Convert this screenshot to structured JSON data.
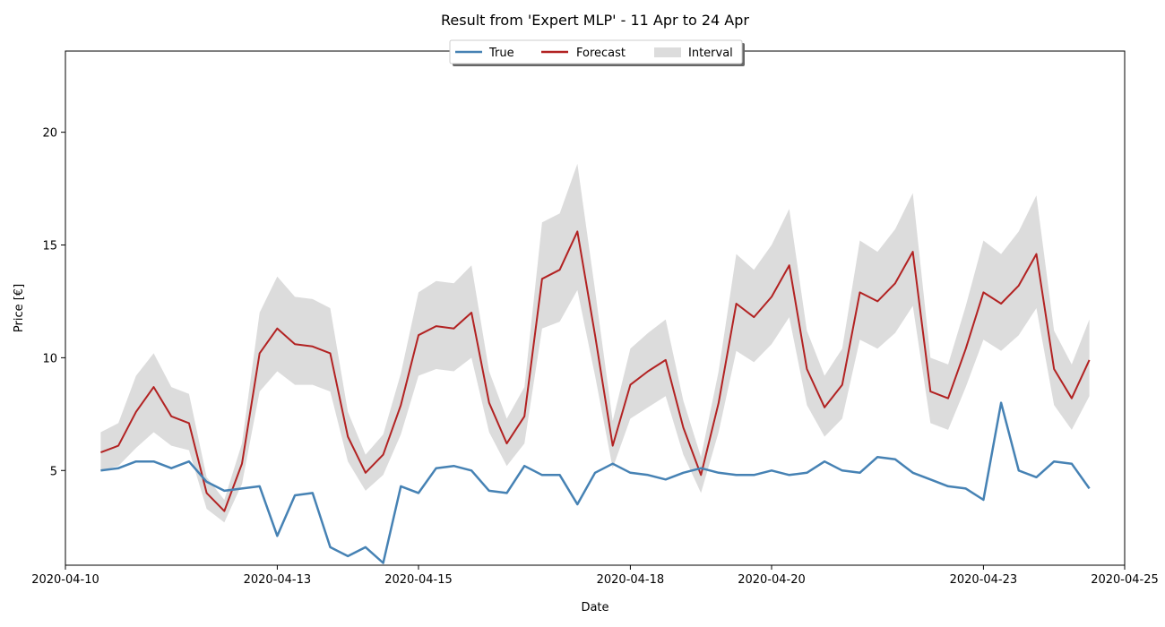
{
  "chart_data": {
    "type": "line",
    "title": "Result from 'Expert MLP' - 11 Apr to 24 Apr",
    "xlabel": "Date",
    "ylabel": "Price [€]",
    "xlim": [
      "2020-04-10T00:00",
      "2020-04-25T00:00"
    ],
    "ylim": [
      0.8,
      23.6
    ],
    "x_ticks": [
      "2020-04-10",
      "2020-04-13",
      "2020-04-15",
      "2020-04-18",
      "2020-04-20",
      "2020-04-23",
      "2020-04-25"
    ],
    "y_ticks": [
      5,
      10,
      15,
      20
    ],
    "grid": false,
    "legend": {
      "placement": "top-center",
      "entries": [
        "True",
        "Forecast",
        "Interval"
      ]
    },
    "colors": {
      "true": "#4682b4",
      "forecast": "#b22222",
      "interval": "#dcdcdc"
    },
    "x": [
      "2020-04-10T12:00",
      "2020-04-10T18:00",
      "2020-04-11T00:00",
      "2020-04-11T06:00",
      "2020-04-11T12:00",
      "2020-04-11T18:00",
      "2020-04-12T00:00",
      "2020-04-12T06:00",
      "2020-04-12T12:00",
      "2020-04-12T18:00",
      "2020-04-13T00:00",
      "2020-04-13T06:00",
      "2020-04-13T12:00",
      "2020-04-13T18:00",
      "2020-04-14T00:00",
      "2020-04-14T06:00",
      "2020-04-14T12:00",
      "2020-04-14T18:00",
      "2020-04-15T00:00",
      "2020-04-15T06:00",
      "2020-04-15T12:00",
      "2020-04-15T18:00",
      "2020-04-16T00:00",
      "2020-04-16T06:00",
      "2020-04-16T12:00",
      "2020-04-16T18:00",
      "2020-04-17T00:00",
      "2020-04-17T06:00",
      "2020-04-17T12:00",
      "2020-04-17T18:00",
      "2020-04-18T00:00",
      "2020-04-18T06:00",
      "2020-04-18T12:00",
      "2020-04-18T18:00",
      "2020-04-19T00:00",
      "2020-04-19T06:00",
      "2020-04-19T12:00",
      "2020-04-19T18:00",
      "2020-04-20T00:00",
      "2020-04-20T06:00",
      "2020-04-20T12:00",
      "2020-04-20T18:00",
      "2020-04-21T00:00",
      "2020-04-21T06:00",
      "2020-04-21T12:00",
      "2020-04-21T18:00",
      "2020-04-22T00:00",
      "2020-04-22T06:00",
      "2020-04-22T12:00",
      "2020-04-22T18:00",
      "2020-04-23T00:00",
      "2020-04-23T06:00",
      "2020-04-23T12:00",
      "2020-04-23T18:00",
      "2020-04-24T00:00",
      "2020-04-24T06:00",
      "2020-04-24T12:00"
    ],
    "series": [
      {
        "name": "True",
        "values": [
          5.0,
          5.1,
          5.4,
          5.4,
          5.1,
          5.4,
          4.5,
          4.1,
          4.2,
          4.3,
          2.1,
          3.9,
          4.0,
          1.6,
          1.2,
          1.6,
          0.9,
          4.3,
          4.0,
          5.1,
          5.2,
          5.0,
          4.1,
          4.0,
          5.2,
          4.8,
          4.8,
          3.5,
          4.9,
          5.3,
          4.9,
          4.8,
          4.6,
          4.9,
          5.1,
          4.9,
          4.8,
          4.8,
          5.0,
          4.8,
          4.9,
          5.4,
          5.0,
          4.9,
          5.6,
          5.5,
          4.9,
          4.6,
          4.3,
          4.2,
          3.7,
          8.0,
          5.0,
          4.7,
          5.4,
          5.3,
          4.2
        ]
      },
      {
        "name": "Forecast",
        "values": [
          5.8,
          6.1,
          7.6,
          8.7,
          7.4,
          7.1,
          4.0,
          3.2,
          5.3,
          10.2,
          11.3,
          10.6,
          10.5,
          10.2,
          6.5,
          4.9,
          5.7,
          7.9,
          11.0,
          11.4,
          11.3,
          12.0,
          8.0,
          6.2,
          7.4,
          13.5,
          13.9,
          15.6,
          11.0,
          6.1,
          8.8,
          9.4,
          9.9,
          6.9,
          4.8,
          8.0,
          12.4,
          11.8,
          12.7,
          14.1,
          9.5,
          7.8,
          8.8,
          12.9,
          12.5,
          13.3,
          14.7,
          8.5,
          8.2,
          10.4,
          12.9,
          12.4,
          13.2,
          14.6,
          9.5,
          8.2,
          9.9
        ]
      },
      {
        "name": "Interval",
        "lower": [
          5.0,
          5.2,
          6.0,
          6.7,
          6.1,
          5.9,
          3.3,
          2.7,
          4.4,
          8.5,
          9.4,
          8.8,
          8.8,
          8.5,
          5.4,
          4.1,
          4.8,
          6.6,
          9.2,
          9.5,
          9.4,
          10.0,
          6.7,
          5.2,
          6.2,
          11.3,
          11.6,
          13.0,
          9.2,
          5.1,
          7.3,
          7.8,
          8.3,
          5.7,
          4.0,
          6.7,
          10.3,
          9.8,
          10.6,
          11.8,
          7.9,
          6.5,
          7.3,
          10.8,
          10.4,
          11.1,
          12.3,
          7.1,
          6.8,
          8.7,
          10.8,
          10.3,
          11.0,
          12.2,
          7.9,
          6.8,
          8.3
        ],
        "upper": [
          6.7,
          7.1,
          9.2,
          10.2,
          8.7,
          8.4,
          4.7,
          3.7,
          6.2,
          12.0,
          13.6,
          12.7,
          12.6,
          12.2,
          7.6,
          5.7,
          6.6,
          9.3,
          12.9,
          13.4,
          13.3,
          14.1,
          9.4,
          7.3,
          8.7,
          16.0,
          16.4,
          18.6,
          13.0,
          7.2,
          10.4,
          11.1,
          11.7,
          8.1,
          5.6,
          9.4,
          14.6,
          13.9,
          15.0,
          16.6,
          11.2,
          9.2,
          10.4,
          15.2,
          14.7,
          15.7,
          17.3,
          10.0,
          9.7,
          12.3,
          15.2,
          14.6,
          15.6,
          17.2,
          11.2,
          9.7,
          11.7
        ]
      }
    ]
  }
}
